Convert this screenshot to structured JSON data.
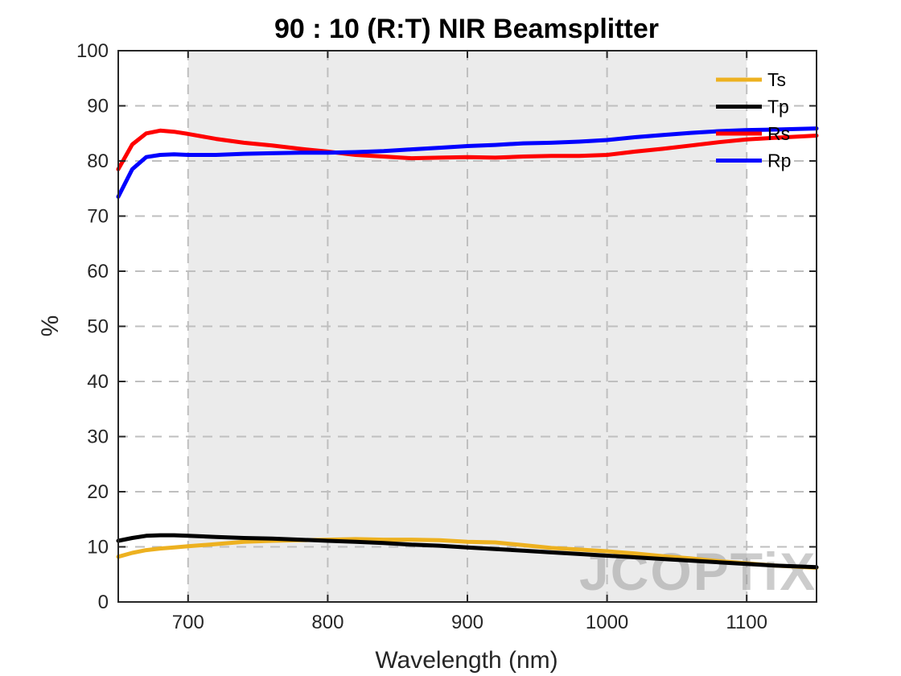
{
  "chart_data": {
    "type": "line",
    "title": "90 : 10 (R:T) NIR Beamsplitter",
    "xlabel": "Wavelength (nm)",
    "ylabel": "%",
    "xlim": [
      650,
      1150
    ],
    "ylim": [
      0,
      100
    ],
    "xticks": [
      700,
      800,
      900,
      1000,
      1100
    ],
    "yticks": [
      0,
      10,
      20,
      30,
      40,
      50,
      60,
      70,
      80,
      90,
      100
    ],
    "shaded_band": [
      700,
      1100
    ],
    "grid": true,
    "legend_position": "top-right",
    "series": [
      {
        "name": "Ts",
        "color": "#EDB120",
        "x": [
          650,
          660,
          670,
          680,
          690,
          700,
          720,
          740,
          760,
          780,
          800,
          820,
          840,
          860,
          880,
          900,
          920,
          940,
          960,
          980,
          1000,
          1020,
          1040,
          1060,
          1080,
          1100,
          1120,
          1150
        ],
        "y": [
          8.2,
          8.9,
          9.4,
          9.7,
          9.9,
          10.1,
          10.5,
          10.9,
          11.1,
          11.2,
          11.3,
          11.4,
          11.3,
          11.3,
          11.2,
          10.9,
          10.8,
          10.3,
          9.8,
          9.5,
          9.2,
          8.8,
          8.3,
          7.9,
          7.4,
          7.0,
          6.6,
          6.2
        ]
      },
      {
        "name": "Tp",
        "color": "#000000",
        "x": [
          650,
          660,
          670,
          680,
          690,
          700,
          720,
          740,
          760,
          780,
          800,
          820,
          840,
          860,
          880,
          900,
          920,
          940,
          960,
          980,
          1000,
          1020,
          1040,
          1060,
          1080,
          1100,
          1120,
          1150
        ],
        "y": [
          11.1,
          11.6,
          12.0,
          12.1,
          12.1,
          12.0,
          11.8,
          11.6,
          11.5,
          11.3,
          11.1,
          10.9,
          10.7,
          10.4,
          10.2,
          9.9,
          9.6,
          9.3,
          9.0,
          8.7,
          8.4,
          8.1,
          7.8,
          7.5,
          7.2,
          6.9,
          6.6,
          6.3
        ]
      },
      {
        "name": "Rs",
        "color": "#FF0000",
        "x": [
          650,
          660,
          670,
          680,
          690,
          700,
          720,
          740,
          760,
          780,
          800,
          820,
          840,
          860,
          880,
          900,
          920,
          940,
          960,
          980,
          1000,
          1020,
          1040,
          1060,
          1080,
          1100,
          1120,
          1150
        ],
        "y": [
          78.5,
          83.0,
          85.0,
          85.5,
          85.3,
          84.9,
          84.0,
          83.3,
          82.8,
          82.2,
          81.7,
          81.1,
          80.8,
          80.5,
          80.6,
          80.7,
          80.6,
          80.8,
          80.9,
          80.9,
          81.1,
          81.7,
          82.2,
          82.8,
          83.4,
          83.9,
          84.2,
          84.6
        ]
      },
      {
        "name": "Rp",
        "color": "#0000FF",
        "x": [
          650,
          660,
          670,
          680,
          690,
          700,
          720,
          740,
          760,
          780,
          800,
          820,
          840,
          860,
          880,
          900,
          920,
          940,
          960,
          980,
          1000,
          1020,
          1040,
          1060,
          1080,
          1100,
          1120,
          1150
        ],
        "y": [
          73.5,
          78.5,
          80.7,
          81.1,
          81.2,
          81.1,
          81.1,
          81.3,
          81.4,
          81.5,
          81.5,
          81.6,
          81.8,
          82.1,
          82.4,
          82.7,
          82.9,
          83.2,
          83.3,
          83.5,
          83.8,
          84.3,
          84.7,
          85.1,
          85.4,
          85.6,
          85.7,
          85.9
        ]
      }
    ]
  },
  "watermark": "JCOPTiX"
}
